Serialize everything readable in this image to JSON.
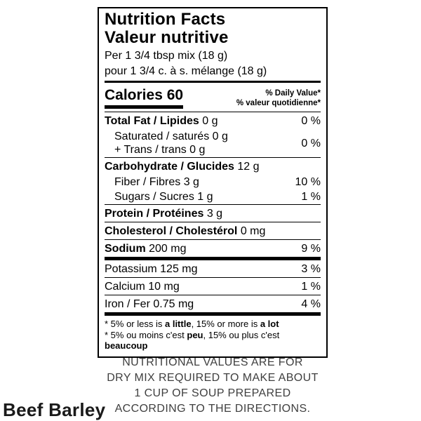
{
  "colors": {
    "label_text": "#000000",
    "caption_text": "#3f3f3f",
    "background": "#ffffff"
  },
  "product": {
    "name": "Beef Barley"
  },
  "caption": {
    "line1": "NUTRITIONAL VALUES ARE FOR",
    "line2": "DRY MIX REQUIRED TO MAKE ABOUT",
    "line3": "1 CUP OF SOUP PREPARED",
    "line4": "ACCORDING TO THE DIRECTIONS."
  },
  "label": {
    "title_en": "Nutrition Facts",
    "title_fr": "Valeur nutritive",
    "serving_en": "Per 1 3/4 tbsp mix (18 g)",
    "serving_fr": "pour 1 3/4 c. à s. mélange (18 g)",
    "calories_label": "Calories",
    "calories_value": "60",
    "daily_value_en": "% Daily Value*",
    "daily_value_fr": "% valeur quotidienne*",
    "rows": {
      "total_fat": {
        "label": "Total Fat / Lipides",
        "value": "0 g",
        "pct": "0 %"
      },
      "saturated": {
        "line1": "Saturated / saturés 0 g",
        "line2": "+ Trans / trans 0 g",
        "pct": "0 %"
      },
      "carbohydrate": {
        "label": "Carbohydrate / Glucides",
        "value": "12 g",
        "pct": ""
      },
      "fiber": {
        "label": "Fiber / Fibres",
        "value": "3 g",
        "pct": "10 %"
      },
      "sugars": {
        "label": "Sugars / Sucres",
        "value": "1 g",
        "pct": "1 %"
      },
      "protein": {
        "label": "Protein / Protéines",
        "value": "3 g",
        "pct": ""
      },
      "cholesterol": {
        "label": "Cholesterol / Cholestérol",
        "value": "0 mg",
        "pct": ""
      },
      "sodium": {
        "label": "Sodium",
        "value": "200 mg",
        "pct": "9 %"
      },
      "potassium": {
        "label": "Potassium",
        "value": "125 mg",
        "pct": "3 %"
      },
      "calcium": {
        "label": "Calcium",
        "value": "10 mg",
        "pct": "1 %"
      },
      "iron": {
        "label": "Iron / Fer",
        "value": "0.75 mg",
        "pct": "4 %"
      }
    },
    "footnote_en": {
      "p1": "* 5% or less is ",
      "b1": "a little",
      "p2": ", 15% or more is ",
      "b2": "a lot"
    },
    "footnote_fr": {
      "p1": "* 5% ou moins c'est ",
      "b1": "peu",
      "p2": ", 15% ou plus c'est ",
      "b2": "beaucoup"
    }
  }
}
